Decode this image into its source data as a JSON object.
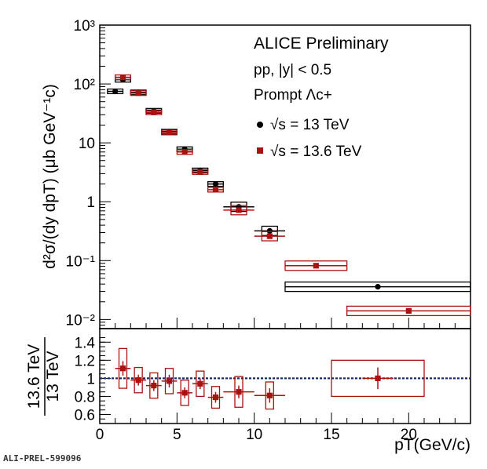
{
  "footer_label": "ALI-PREL-599096",
  "colors": {
    "series_13": "#000000",
    "series_136": "#aa1111",
    "ratio_line": "#1a2a6b"
  },
  "chart_data": [
    {
      "type": "scatter",
      "panel": "top",
      "title": "ALICE Preliminary",
      "info_lines": [
        "pp, |y| < 0.5",
        "Prompt Λc+"
      ],
      "ylabel": "d²σ/(dy dpT) (μb GeV⁻¹c)",
      "y_scale": "log",
      "ylim": [
        0.007,
        1000
      ],
      "xlim": [
        0,
        24
      ],
      "y_tick_labels": [
        "10⁻²",
        "10⁻¹",
        "1",
        "10",
        "10²",
        "10³"
      ],
      "legend_position": "top-right",
      "series": [
        {
          "name": "√s = 13 TeV",
          "color": "#000000",
          "marker": "circle",
          "x": [
            1.0,
            1.5,
            2.5,
            3.5,
            4.5,
            5.5,
            6.5,
            7.5,
            9.0,
            11.0,
            18.0
          ],
          "x_err": [
            0.5,
            0.5,
            0.5,
            0.5,
            0.5,
            0.5,
            0.5,
            0.5,
            1.0,
            1.0,
            6.0
          ],
          "y": [
            75,
            118,
            72,
            35,
            15.5,
            7.8,
            3.4,
            2.0,
            0.82,
            0.32,
            0.036
          ]
        },
        {
          "name": "√s = 13.6 TeV",
          "color": "#aa1111",
          "marker": "square",
          "x": [
            1.5,
            2.5,
            3.5,
            4.5,
            5.5,
            6.5,
            7.5,
            9.0,
            11.0,
            14.0,
            20.0
          ],
          "x_err": [
            0.5,
            0.5,
            0.5,
            0.5,
            0.5,
            0.5,
            0.5,
            1.0,
            1.0,
            2.0,
            4.0
          ],
          "y": [
            130,
            70,
            33,
            15,
            7.0,
            3.2,
            1.6,
            0.72,
            0.26,
            0.082,
            0.014
          ]
        }
      ]
    },
    {
      "type": "scatter",
      "panel": "bottom",
      "ylabel_top": "13.6 TeV",
      "ylabel_bottom": "13 TeV",
      "xlabel": "pT(GeV/c)",
      "xlim": [
        0,
        24
      ],
      "ylim": [
        0.5,
        1.55
      ],
      "x_tick_labels": [
        "0",
        "5",
        "10",
        "15",
        "20"
      ],
      "y_tick_labels": [
        "0.6",
        "0.8",
        "1",
        "1.2",
        "1.4"
      ],
      "reference_line": 1.0,
      "series": [
        {
          "name": "ratio",
          "color": "#aa1111",
          "x": [
            1.5,
            2.5,
            3.5,
            4.5,
            5.5,
            6.5,
            7.5,
            9.0,
            11.0,
            18.0
          ],
          "x_err": [
            0.5,
            0.5,
            0.5,
            0.5,
            0.5,
            0.5,
            0.5,
            1.0,
            1.0,
            3.0
          ],
          "y": [
            1.11,
            0.98,
            0.92,
            0.97,
            0.84,
            0.94,
            0.79,
            0.85,
            0.81,
            1.0
          ],
          "syst": [
            0.22,
            0.14,
            0.14,
            0.14,
            0.14,
            0.14,
            0.12,
            0.17,
            0.15,
            0.2
          ],
          "stat": [
            0.08,
            0.06,
            0.06,
            0.07,
            0.06,
            0.06,
            0.06,
            0.07,
            0.08,
            0.12
          ]
        }
      ]
    }
  ]
}
